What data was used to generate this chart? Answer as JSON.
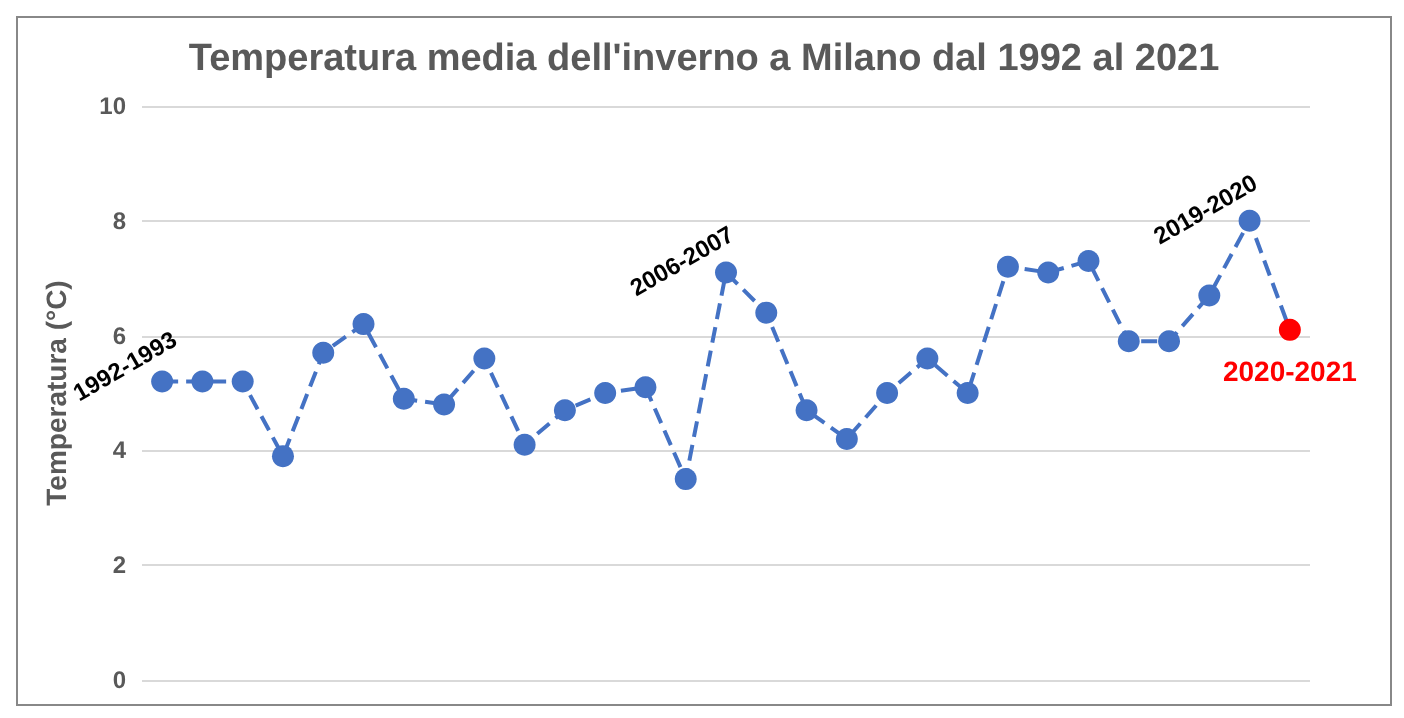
{
  "chart_data": {
    "type": "line",
    "title": "Temperatura media dell'inverno a Milano dal 1992 al 2021",
    "ylabel": "Temperatura (°C)",
    "categories": [
      null,
      null,
      null,
      null,
      null,
      null,
      null,
      null,
      null,
      null,
      null,
      null,
      null,
      null,
      null,
      null,
      null,
      null,
      null,
      null,
      null,
      null,
      null,
      null,
      null,
      null,
      null,
      null,
      null
    ],
    "series": [
      {
        "color": "#4472c4",
        "values": [
          5.2,
          5.2,
          5.2,
          3.9,
          5.7,
          6.2,
          4.9,
          4.8,
          5.6,
          4.1,
          4.7,
          5.0,
          5.1,
          3.5,
          7.1,
          6.4,
          4.7,
          4.2,
          5.0,
          5.6,
          5.0,
          7.2,
          7.1,
          7.3,
          5.9,
          5.9,
          6.7,
          8.0,
          6.1
        ],
        "colors": [
          "#4472c4",
          "#4472c4",
          "#4472c4",
          "#4472c4",
          "#4472c4",
          "#4472c4",
          "#4472c4",
          "#4472c4",
          "#4472c4",
          "#4472c4",
          "#4472c4",
          "#4472c4",
          "#4472c4",
          "#4472c4",
          "#4472c4",
          "#4472c4",
          "#4472c4",
          "#4472c4",
          "#4472c4",
          "#4472c4",
          "#4472c4",
          "#4472c4",
          "#4472c4",
          "#4472c4",
          "#4472c4",
          "#4472c4",
          "#4472c4",
          "#4472c4",
          "#ff0000"
        ],
        "value_labels": [
          "1992-1993",
          null,
          null,
          null,
          null,
          null,
          null,
          null,
          null,
          null,
          null,
          null,
          null,
          null,
          "2006-2007",
          null,
          null,
          null,
          null,
          null,
          null,
          null,
          null,
          null,
          null,
          null,
          null,
          "2019-2020",
          "2020-2021"
        ]
      }
    ],
    "ylim": [
      0,
      10
    ],
    "yticks": [
      0,
      2,
      4,
      6,
      8,
      10
    ],
    "grid": "y",
    "legend": false,
    "tick_labels": "y",
    "marker": "circle",
    "line_style": "dashed"
  }
}
